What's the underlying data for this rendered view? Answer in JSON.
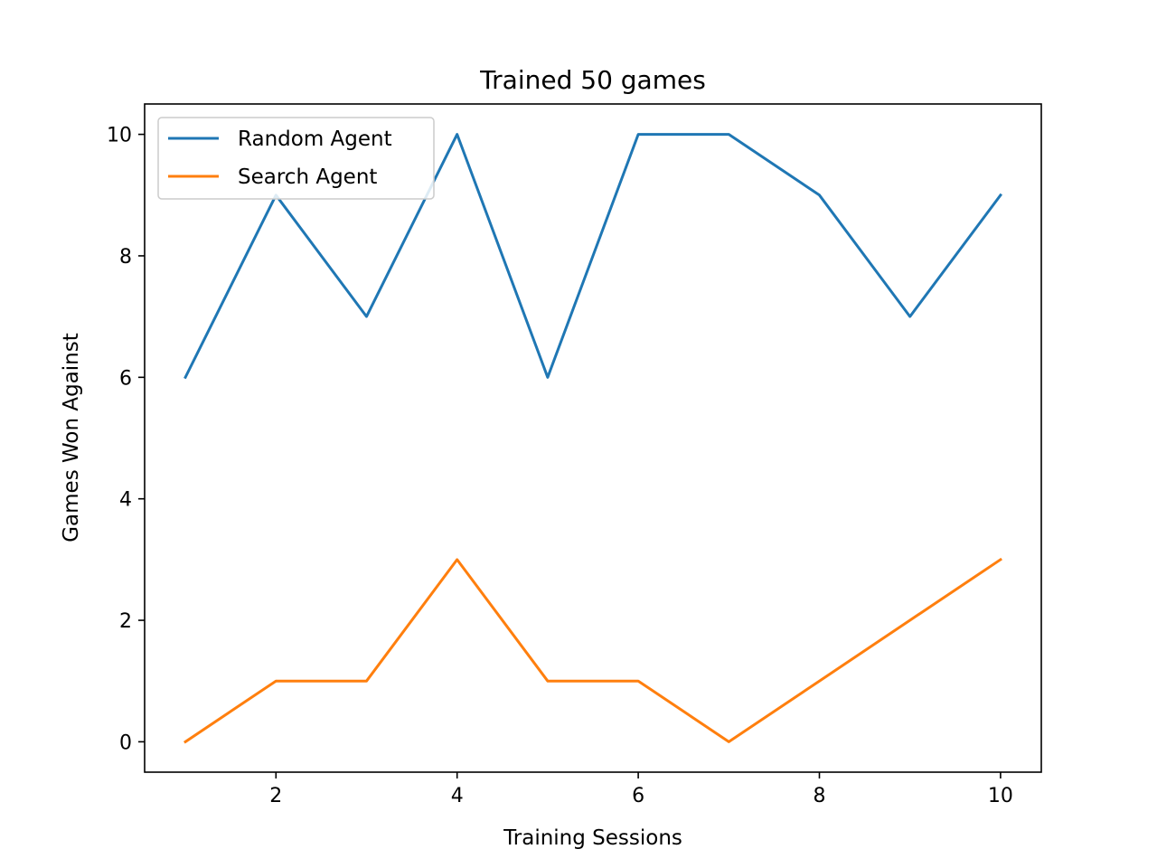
{
  "chart_data": {
    "type": "line",
    "title": "Trained 50 games",
    "xlabel": "Training Sessions",
    "ylabel": "Games Won Against",
    "x": [
      1,
      2,
      3,
      4,
      5,
      6,
      7,
      8,
      9,
      10
    ],
    "series": [
      {
        "name": "Random Agent",
        "color": "#1f77b4",
        "values": [
          6,
          9,
          7,
          10,
          6,
          10,
          10,
          9,
          7,
          9
        ]
      },
      {
        "name": "Search Agent",
        "color": "#ff7f0e",
        "values": [
          0,
          1,
          1,
          3,
          1,
          1,
          0,
          1,
          2,
          3
        ]
      }
    ],
    "xlim": [
      0.55,
      10.45
    ],
    "ylim": [
      -0.5,
      10.5
    ],
    "xticks": [
      2,
      4,
      6,
      8,
      10
    ],
    "yticks": [
      0,
      2,
      4,
      6,
      8,
      10
    ],
    "grid": false,
    "legend_position": "upper-left"
  }
}
